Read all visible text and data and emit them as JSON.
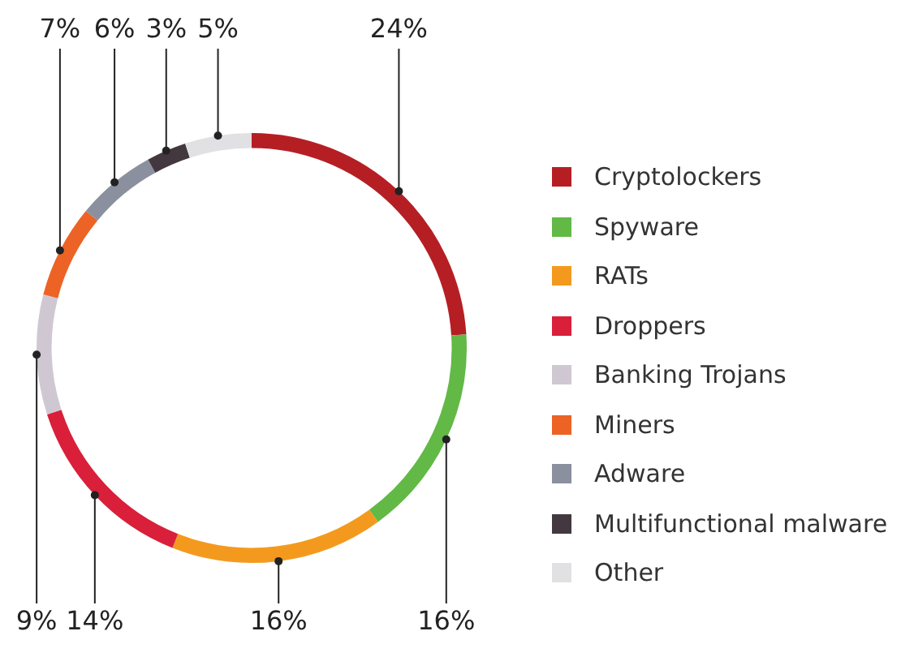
{
  "chart_data": {
    "type": "donut",
    "categories": [
      "Cryptolockers",
      "Spyware",
      "RATs",
      "Droppers",
      "Banking Trojans",
      "Miners",
      "Adware",
      "Multifunctional malware",
      "Other"
    ],
    "values": [
      24,
      16,
      16,
      14,
      9,
      7,
      6,
      3,
      5
    ],
    "colors": [
      "#b51f24",
      "#62b946",
      "#f39a1e",
      "#d91f3a",
      "#cfc8d3",
      "#ec6325",
      "#8b909f",
      "#43383f",
      "#e1e1e3"
    ],
    "value_labels": [
      "24%",
      "16%",
      "16%",
      "14%",
      "9%",
      "7%",
      "6%",
      "3%",
      "5%"
    ],
    "legend": "right"
  }
}
